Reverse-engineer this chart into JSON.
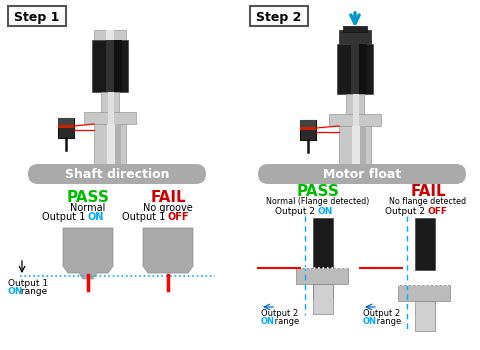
{
  "step1_label": "Step 1",
  "step2_label": "Step 2",
  "shaft_direction_label": "Shaft direction",
  "motor_float_label": "Motor float",
  "pass_color": "#00bb00",
  "fail_color": "#cc0000",
  "on_color": "#00aaff",
  "off_color": "#cc0000",
  "gray_fill": "#aaaaaa",
  "light_gray": "#bbbbbb",
  "silver": "#c8c8c8",
  "bg_color": "#ffffff",
  "black_body": "#1a1a1a",
  "sensor_dark": "#2a2a2a"
}
